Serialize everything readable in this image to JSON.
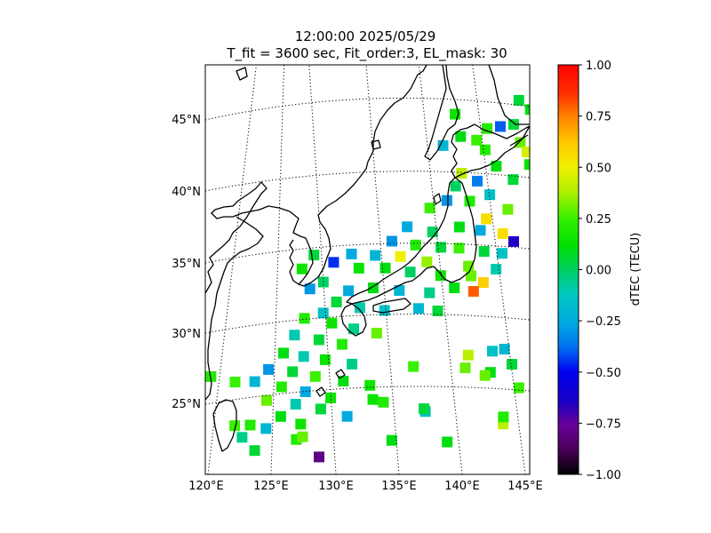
{
  "title": {
    "line1": "12:00:00 2025/05/29",
    "line2": "T_fit = 3600 sec, Fit_order:3, EL_mask: 30"
  },
  "map": {
    "lon_ticks": [
      "120°E",
      "125°E",
      "130°E",
      "135°E",
      "140°E",
      "145°E"
    ],
    "lat_ticks": [
      "25°N",
      "30°N",
      "35°N",
      "40°N",
      "45°N"
    ],
    "lon_range": [
      120,
      145
    ],
    "lat_range": [
      20,
      49
    ],
    "graticule": "dotted",
    "coastline_color": "#000000"
  },
  "colorbar": {
    "label": "dTEC (TECU)",
    "ticks": [
      "1.00",
      "0.75",
      "0.50",
      "0.25",
      "0.00",
      "−0.25",
      "−0.50",
      "−0.75",
      "−1.00"
    ],
    "range": [
      -1.0,
      1.0
    ],
    "colormap": "nipy_spectral-like"
  },
  "chart_data": {
    "type": "heatmap",
    "title": "12:00:00 2025/05/29 / T_fit = 3600 sec, Fit_order:3, EL_mask: 30",
    "colorbar_label": "dTEC (TECU)",
    "vmin": -1.0,
    "vmax": 1.0,
    "points": [
      [
        143.4,
        46.2,
        0.05
      ],
      [
        144.2,
        45.5,
        0.1
      ],
      [
        139.1,
        45.4,
        0.15
      ],
      [
        141.3,
        44.3,
        0.2
      ],
      [
        142.2,
        44.4,
        -0.4
      ],
      [
        143.1,
        44.5,
        0.05
      ],
      [
        139.5,
        43.8,
        0.1
      ],
      [
        140.6,
        43.5,
        0.25
      ],
      [
        138.3,
        43.2,
        -0.2
      ],
      [
        143.6,
        43.2,
        0.3
      ],
      [
        141.2,
        42.8,
        0.2
      ],
      [
        144.1,
        42.5,
        0.45
      ],
      [
        144.3,
        41.6,
        0.15
      ],
      [
        142.0,
        41.6,
        0.1
      ],
      [
        139.6,
        41.2,
        0.4
      ],
      [
        140.7,
        40.6,
        -0.35
      ],
      [
        143.2,
        40.6,
        0.05
      ],
      [
        139.2,
        40.3,
        0.0
      ],
      [
        141.6,
        39.6,
        -0.15
      ],
      [
        140.2,
        39.2,
        0.2
      ],
      [
        138.6,
        39.3,
        -0.3
      ],
      [
        137.4,
        38.8,
        0.25
      ],
      [
        142.9,
        38.5,
        0.3
      ],
      [
        141.4,
        37.9,
        0.55
      ],
      [
        135.8,
        37.5,
        -0.25
      ],
      [
        139.5,
        37.4,
        0.1
      ],
      [
        137.6,
        37.1,
        0.0
      ],
      [
        141.0,
        37.1,
        -0.25
      ],
      [
        142.6,
        36.8,
        0.55
      ],
      [
        143.4,
        36.2,
        -0.65
      ],
      [
        134.7,
        36.5,
        -0.3
      ],
      [
        136.4,
        36.2,
        0.2
      ],
      [
        138.2,
        36.0,
        0.05
      ],
      [
        139.5,
        35.9,
        0.25
      ],
      [
        141.3,
        35.6,
        0.05
      ],
      [
        142.6,
        35.4,
        -0.15
      ],
      [
        131.8,
        35.6,
        -0.25
      ],
      [
        133.5,
        35.5,
        -0.2
      ],
      [
        135.3,
        35.4,
        0.5
      ],
      [
        137.2,
        35.0,
        0.35
      ],
      [
        140.2,
        34.6,
        0.3
      ],
      [
        142.2,
        34.3,
        -0.1
      ],
      [
        129.1,
        35.5,
        0.05
      ],
      [
        130.5,
        35.0,
        -0.45
      ],
      [
        132.3,
        34.6,
        0.15
      ],
      [
        134.2,
        34.6,
        0.1
      ],
      [
        136.0,
        34.3,
        0.0
      ],
      [
        138.2,
        34.0,
        0.15
      ],
      [
        140.4,
        33.9,
        0.3
      ],
      [
        141.3,
        33.4,
        0.6
      ],
      [
        140.6,
        32.8,
        0.8
      ],
      [
        139.2,
        33.1,
        0.1
      ],
      [
        137.4,
        32.8,
        -0.05
      ],
      [
        135.2,
        33.0,
        -0.2
      ],
      [
        133.3,
        33.2,
        0.1
      ],
      [
        131.5,
        33.0,
        -0.25
      ],
      [
        129.7,
        33.6,
        0.0
      ],
      [
        128.2,
        34.5,
        0.15
      ],
      [
        128.7,
        33.1,
        -0.3
      ],
      [
        130.6,
        32.2,
        0.05
      ],
      [
        132.3,
        31.8,
        -0.1
      ],
      [
        134.1,
        31.6,
        -0.15
      ],
      [
        136.6,
        31.7,
        -0.2
      ],
      [
        138.0,
        31.5,
        0.05
      ],
      [
        129.6,
        31.4,
        -0.15
      ],
      [
        128.2,
        31.0,
        0.2
      ],
      [
        130.2,
        30.7,
        0.15
      ],
      [
        131.8,
        30.3,
        -0.05
      ],
      [
        133.5,
        30.0,
        0.3
      ],
      [
        127.4,
        29.8,
        -0.1
      ],
      [
        129.2,
        29.5,
        0.05
      ],
      [
        130.9,
        29.2,
        0.2
      ],
      [
        126.5,
        28.5,
        0.1
      ],
      [
        128.0,
        28.3,
        -0.1
      ],
      [
        129.6,
        28.1,
        0.15
      ],
      [
        131.6,
        27.8,
        -0.05
      ],
      [
        125.3,
        27.3,
        -0.3
      ],
      [
        127.1,
        27.2,
        0.05
      ],
      [
        128.8,
        26.9,
        0.25
      ],
      [
        130.9,
        26.6,
        0.1
      ],
      [
        124.2,
        26.4,
        -0.2
      ],
      [
        126.2,
        26.1,
        0.2
      ],
      [
        128.0,
        25.8,
        -0.25
      ],
      [
        129.9,
        25.4,
        0.15
      ],
      [
        125.0,
        25.1,
        0.3
      ],
      [
        127.2,
        24.9,
        -0.1
      ],
      [
        129.1,
        24.6,
        0.05
      ],
      [
        122.7,
        26.3,
        0.25
      ],
      [
        120.9,
        26.6,
        0.2
      ],
      [
        126.0,
        24.0,
        0.1
      ],
      [
        124.8,
        23.1,
        -0.2
      ],
      [
        127.5,
        23.5,
        0.15
      ],
      [
        122.4,
        23.2,
        0.25
      ],
      [
        123.6,
        23.3,
        0.2
      ],
      [
        122.9,
        22.4,
        -0.05
      ],
      [
        123.8,
        21.5,
        0.05
      ],
      [
        127.1,
        22.4,
        0.2
      ],
      [
        127.6,
        22.6,
        0.3
      ],
      [
        128.8,
        21.2,
        -0.8
      ],
      [
        137.1,
        24.4,
        -0.15
      ],
      [
        138.8,
        22.2,
        0.1
      ],
      [
        132.9,
        26.3,
        0.15
      ],
      [
        133.9,
        25.1,
        0.2
      ],
      [
        136.2,
        27.6,
        0.25
      ],
      [
        140.1,
        27.4,
        0.3
      ],
      [
        140.3,
        28.3,
        0.4
      ],
      [
        142.0,
        27.0,
        0.1
      ],
      [
        142.1,
        28.5,
        -0.15
      ],
      [
        143.0,
        28.6,
        -0.2
      ],
      [
        143.6,
        27.5,
        0.05
      ],
      [
        144.2,
        25.8,
        0.25
      ],
      [
        143.1,
        23.3,
        0.4
      ],
      [
        143.1,
        23.8,
        0.2
      ],
      [
        141.6,
        26.8,
        0.3
      ],
      [
        131.1,
        24.1,
        -0.25
      ],
      [
        133.1,
        25.3,
        0.15
      ],
      [
        137.0,
        24.6,
        0.05
      ],
      [
        134.5,
        22.4,
        0.1
      ]
    ]
  }
}
